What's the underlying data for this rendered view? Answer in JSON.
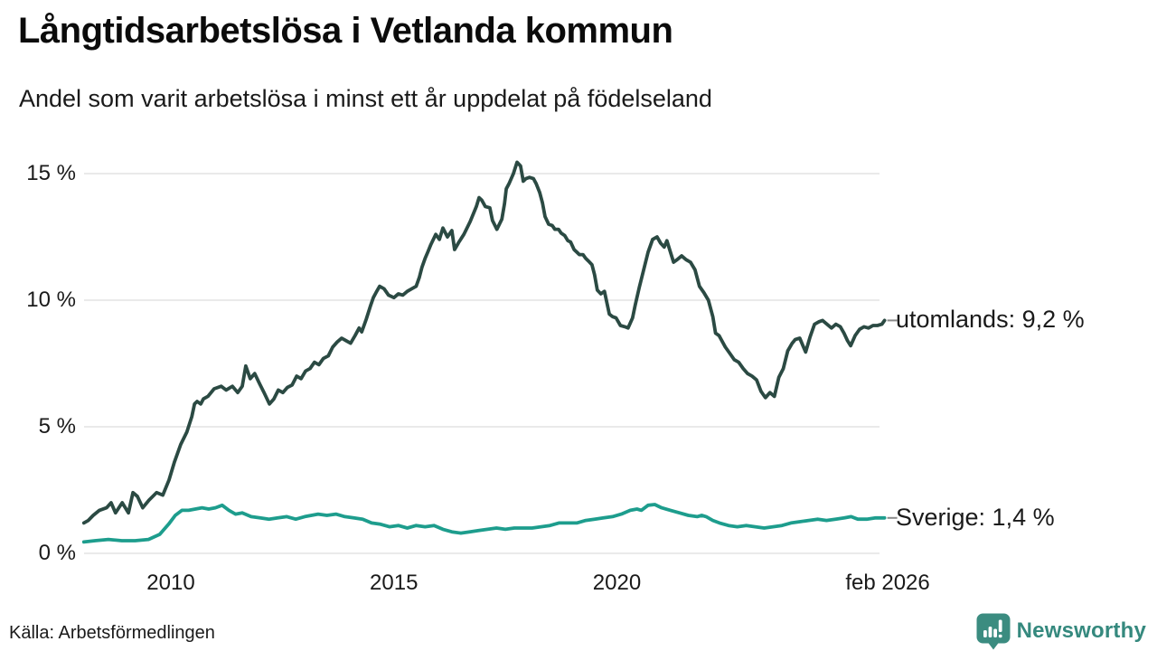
{
  "header": {
    "title": "Långtidsarbetslösa i Vetlanda kommun",
    "subtitle": "Andel som varit arbetslösa i minst ett år uppdelat på födelseland"
  },
  "footer": {
    "source": "Källa: Arbetsförmedlingen",
    "brand": "Newsworthy"
  },
  "colors": {
    "utomlands": "#2b4a43",
    "sverige": "#1d9d8d",
    "grid": "#e3e3e3",
    "text": "#1a1a1a",
    "label_dash": "#8a8a8a",
    "brand_teal": "#3b8c80"
  },
  "chart_data": {
    "type": "line",
    "title": "Långtidsarbetslösa i Vetlanda kommun",
    "subtitle": "Andel som varit arbetslösa i minst ett år uppdelat på födelseland",
    "unit": "%",
    "grid": "horizontal",
    "legend_position": "right-end-labels",
    "x_axis": {
      "range": [
        2008.05,
        2026.0
      ],
      "ticks": [
        {
          "t": 2010,
          "label": "2010"
        },
        {
          "t": 2015,
          "label": "2015"
        },
        {
          "t": 2020,
          "label": "2020"
        },
        {
          "t": 2026.07,
          "label": "feb 2026"
        }
      ]
    },
    "y_axis": {
      "range": [
        0,
        15.5
      ],
      "ticks": [
        {
          "v": 0,
          "label": "0 %"
        },
        {
          "v": 5,
          "label": "5 %"
        },
        {
          "v": 10,
          "label": "10 %"
        },
        {
          "v": 15,
          "label": "15 %"
        }
      ]
    },
    "series": [
      {
        "name": "utomlands",
        "end_label": "utomlands: 9,2 %",
        "end_value": 9.2,
        "color_key": "utomlands",
        "points": [
          [
            2008.05,
            1.2
          ],
          [
            2008.15,
            1.3
          ],
          [
            2008.26,
            1.5
          ],
          [
            2008.4,
            1.7
          ],
          [
            2008.56,
            1.8
          ],
          [
            2008.66,
            2.0
          ],
          [
            2008.76,
            1.6
          ],
          [
            2008.91,
            2.0
          ],
          [
            2009.05,
            1.6
          ],
          [
            2009.15,
            2.4
          ],
          [
            2009.25,
            2.25
          ],
          [
            2009.37,
            1.8
          ],
          [
            2009.51,
            2.1
          ],
          [
            2009.68,
            2.4
          ],
          [
            2009.82,
            2.3
          ],
          [
            2009.96,
            2.9
          ],
          [
            2010.08,
            3.6
          ],
          [
            2010.22,
            4.3
          ],
          [
            2010.36,
            4.8
          ],
          [
            2010.47,
            5.4
          ],
          [
            2010.53,
            5.9
          ],
          [
            2010.59,
            6.0
          ],
          [
            2010.67,
            5.9
          ],
          [
            2010.73,
            6.1
          ],
          [
            2010.83,
            6.2
          ],
          [
            2010.97,
            6.5
          ],
          [
            2011.13,
            6.6
          ],
          [
            2011.24,
            6.45
          ],
          [
            2011.38,
            6.6
          ],
          [
            2011.5,
            6.35
          ],
          [
            2011.6,
            6.6
          ],
          [
            2011.68,
            7.4
          ],
          [
            2011.78,
            6.9
          ],
          [
            2011.88,
            7.1
          ],
          [
            2011.99,
            6.7
          ],
          [
            2012.09,
            6.35
          ],
          [
            2012.21,
            5.9
          ],
          [
            2012.31,
            6.1
          ],
          [
            2012.41,
            6.45
          ],
          [
            2012.51,
            6.35
          ],
          [
            2012.61,
            6.55
          ],
          [
            2012.72,
            6.65
          ],
          [
            2012.82,
            7.0
          ],
          [
            2012.92,
            6.9
          ],
          [
            2013.02,
            7.2
          ],
          [
            2013.12,
            7.3
          ],
          [
            2013.22,
            7.55
          ],
          [
            2013.32,
            7.45
          ],
          [
            2013.42,
            7.7
          ],
          [
            2013.53,
            7.8
          ],
          [
            2013.63,
            8.15
          ],
          [
            2013.73,
            8.35
          ],
          [
            2013.83,
            8.5
          ],
          [
            2013.93,
            8.4
          ],
          [
            2014.03,
            8.3
          ],
          [
            2014.13,
            8.6
          ],
          [
            2014.22,
            8.9
          ],
          [
            2014.28,
            8.75
          ],
          [
            2014.38,
            9.25
          ],
          [
            2014.48,
            9.8
          ],
          [
            2014.54,
            10.1
          ],
          [
            2014.6,
            10.3
          ],
          [
            2014.68,
            10.55
          ],
          [
            2014.78,
            10.45
          ],
          [
            2014.88,
            10.2
          ],
          [
            2015.0,
            10.1
          ],
          [
            2015.1,
            10.25
          ],
          [
            2015.2,
            10.2
          ],
          [
            2015.3,
            10.35
          ],
          [
            2015.4,
            10.45
          ],
          [
            2015.5,
            10.55
          ],
          [
            2015.57,
            10.9
          ],
          [
            2015.63,
            11.3
          ],
          [
            2015.7,
            11.65
          ],
          [
            2015.76,
            11.9
          ],
          [
            2015.83,
            12.2
          ],
          [
            2015.94,
            12.6
          ],
          [
            2016.02,
            12.4
          ],
          [
            2016.1,
            12.85
          ],
          [
            2016.2,
            12.5
          ],
          [
            2016.3,
            12.75
          ],
          [
            2016.36,
            12.0
          ],
          [
            2016.46,
            12.3
          ],
          [
            2016.57,
            12.6
          ],
          [
            2016.71,
            13.1
          ],
          [
            2016.85,
            13.7
          ],
          [
            2016.91,
            14.05
          ],
          [
            2016.97,
            13.95
          ],
          [
            2017.05,
            13.7
          ],
          [
            2017.15,
            13.65
          ],
          [
            2017.21,
            13.15
          ],
          [
            2017.31,
            12.8
          ],
          [
            2017.42,
            13.2
          ],
          [
            2017.48,
            13.8
          ],
          [
            2017.52,
            14.4
          ],
          [
            2017.58,
            14.6
          ],
          [
            2017.68,
            15.0
          ],
          [
            2017.76,
            15.45
          ],
          [
            2017.84,
            15.3
          ],
          [
            2017.9,
            14.7
          ],
          [
            2017.96,
            14.8
          ],
          [
            2018.04,
            14.85
          ],
          [
            2018.13,
            14.8
          ],
          [
            2018.19,
            14.6
          ],
          [
            2018.27,
            14.25
          ],
          [
            2018.33,
            13.85
          ],
          [
            2018.39,
            13.3
          ],
          [
            2018.47,
            13.0
          ],
          [
            2018.55,
            12.95
          ],
          [
            2018.61,
            12.8
          ],
          [
            2018.69,
            12.8
          ],
          [
            2018.75,
            12.65
          ],
          [
            2018.83,
            12.55
          ],
          [
            2018.9,
            12.35
          ],
          [
            2018.96,
            12.3
          ],
          [
            2019.04,
            12.0
          ],
          [
            2019.1,
            11.9
          ],
          [
            2019.16,
            11.8
          ],
          [
            2019.24,
            11.8
          ],
          [
            2019.3,
            11.65
          ],
          [
            2019.36,
            11.55
          ],
          [
            2019.44,
            11.4
          ],
          [
            2019.5,
            11.0
          ],
          [
            2019.56,
            10.4
          ],
          [
            2019.64,
            10.25
          ],
          [
            2019.72,
            10.35
          ],
          [
            2019.83,
            9.45
          ],
          [
            2019.9,
            9.35
          ],
          [
            2019.98,
            9.3
          ],
          [
            2020.08,
            9.0
          ],
          [
            2020.18,
            8.95
          ],
          [
            2020.25,
            8.9
          ],
          [
            2020.35,
            9.3
          ],
          [
            2020.41,
            9.8
          ],
          [
            2020.5,
            10.5
          ],
          [
            2020.6,
            11.2
          ],
          [
            2020.7,
            11.9
          ],
          [
            2020.8,
            12.4
          ],
          [
            2020.9,
            12.5
          ],
          [
            2020.98,
            12.25
          ],
          [
            2021.06,
            12.1
          ],
          [
            2021.12,
            12.35
          ],
          [
            2021.2,
            11.9
          ],
          [
            2021.27,
            11.5
          ],
          [
            2021.35,
            11.6
          ],
          [
            2021.45,
            11.75
          ],
          [
            2021.55,
            11.6
          ],
          [
            2021.65,
            11.5
          ],
          [
            2021.75,
            11.2
          ],
          [
            2021.85,
            10.55
          ],
          [
            2021.95,
            10.3
          ],
          [
            2022.05,
            10.0
          ],
          [
            2022.15,
            9.35
          ],
          [
            2022.21,
            8.7
          ],
          [
            2022.29,
            8.6
          ],
          [
            2022.43,
            8.15
          ],
          [
            2022.53,
            7.9
          ],
          [
            2022.63,
            7.65
          ],
          [
            2022.73,
            7.55
          ],
          [
            2022.83,
            7.3
          ],
          [
            2022.93,
            7.1
          ],
          [
            2023.03,
            7.0
          ],
          [
            2023.13,
            6.85
          ],
          [
            2023.23,
            6.4
          ],
          [
            2023.33,
            6.15
          ],
          [
            2023.43,
            6.35
          ],
          [
            2023.53,
            6.2
          ],
          [
            2023.63,
            6.95
          ],
          [
            2023.73,
            7.3
          ],
          [
            2023.83,
            8.0
          ],
          [
            2023.93,
            8.3
          ],
          [
            2024.0,
            8.45
          ],
          [
            2024.1,
            8.5
          ],
          [
            2024.17,
            8.2
          ],
          [
            2024.23,
            7.95
          ],
          [
            2024.33,
            8.55
          ],
          [
            2024.43,
            9.05
          ],
          [
            2024.53,
            9.15
          ],
          [
            2024.61,
            9.2
          ],
          [
            2024.71,
            9.05
          ],
          [
            2024.81,
            8.9
          ],
          [
            2024.91,
            9.05
          ],
          [
            2025.01,
            8.95
          ],
          [
            2025.09,
            8.7
          ],
          [
            2025.17,
            8.4
          ],
          [
            2025.24,
            8.2
          ],
          [
            2025.34,
            8.6
          ],
          [
            2025.44,
            8.85
          ],
          [
            2025.54,
            8.95
          ],
          [
            2025.64,
            8.9
          ],
          [
            2025.74,
            9.0
          ],
          [
            2025.84,
            9.0
          ],
          [
            2025.94,
            9.05
          ],
          [
            2026.0,
            9.2
          ]
        ]
      },
      {
        "name": "Sverige",
        "end_label": "Sverige: 1,4 %",
        "end_value": 1.4,
        "color_key": "sverige",
        "points": [
          [
            2008.05,
            0.45
          ],
          [
            2008.3,
            0.5
          ],
          [
            2008.6,
            0.55
          ],
          [
            2008.9,
            0.5
          ],
          [
            2009.2,
            0.5
          ],
          [
            2009.5,
            0.55
          ],
          [
            2009.75,
            0.75
          ],
          [
            2009.95,
            1.15
          ],
          [
            2010.1,
            1.5
          ],
          [
            2010.25,
            1.7
          ],
          [
            2010.4,
            1.7
          ],
          [
            2010.55,
            1.75
          ],
          [
            2010.7,
            1.8
          ],
          [
            2010.85,
            1.75
          ],
          [
            2011.0,
            1.8
          ],
          [
            2011.15,
            1.9
          ],
          [
            2011.3,
            1.7
          ],
          [
            2011.45,
            1.55
          ],
          [
            2011.6,
            1.6
          ],
          [
            2011.8,
            1.45
          ],
          [
            2012.0,
            1.4
          ],
          [
            2012.2,
            1.35
          ],
          [
            2012.4,
            1.4
          ],
          [
            2012.6,
            1.45
          ],
          [
            2012.8,
            1.35
          ],
          [
            2013.0,
            1.45
          ],
          [
            2013.15,
            1.5
          ],
          [
            2013.3,
            1.55
          ],
          [
            2013.5,
            1.5
          ],
          [
            2013.7,
            1.55
          ],
          [
            2013.9,
            1.45
          ],
          [
            2014.1,
            1.4
          ],
          [
            2014.3,
            1.35
          ],
          [
            2014.5,
            1.2
          ],
          [
            2014.7,
            1.15
          ],
          [
            2014.9,
            1.05
          ],
          [
            2015.1,
            1.1
          ],
          [
            2015.3,
            1.0
          ],
          [
            2015.5,
            1.1
          ],
          [
            2015.7,
            1.05
          ],
          [
            2015.9,
            1.1
          ],
          [
            2016.1,
            0.95
          ],
          [
            2016.3,
            0.85
          ],
          [
            2016.5,
            0.8
          ],
          [
            2016.7,
            0.85
          ],
          [
            2016.9,
            0.9
          ],
          [
            2017.1,
            0.95
          ],
          [
            2017.3,
            1.0
          ],
          [
            2017.5,
            0.95
          ],
          [
            2017.7,
            1.0
          ],
          [
            2017.9,
            1.0
          ],
          [
            2018.1,
            1.0
          ],
          [
            2018.3,
            1.05
          ],
          [
            2018.5,
            1.1
          ],
          [
            2018.7,
            1.2
          ],
          [
            2018.9,
            1.2
          ],
          [
            2019.1,
            1.2
          ],
          [
            2019.3,
            1.3
          ],
          [
            2019.5,
            1.35
          ],
          [
            2019.7,
            1.4
          ],
          [
            2019.9,
            1.45
          ],
          [
            2020.1,
            1.55
          ],
          [
            2020.3,
            1.7
          ],
          [
            2020.45,
            1.75
          ],
          [
            2020.55,
            1.7
          ],
          [
            2020.7,
            1.9
          ],
          [
            2020.85,
            1.93
          ],
          [
            2021.0,
            1.8
          ],
          [
            2021.2,
            1.7
          ],
          [
            2021.4,
            1.6
          ],
          [
            2021.6,
            1.5
          ],
          [
            2021.8,
            1.45
          ],
          [
            2021.9,
            1.5
          ],
          [
            2022.0,
            1.45
          ],
          [
            2022.15,
            1.3
          ],
          [
            2022.3,
            1.2
          ],
          [
            2022.5,
            1.1
          ],
          [
            2022.7,
            1.05
          ],
          [
            2022.9,
            1.1
          ],
          [
            2023.1,
            1.05
          ],
          [
            2023.3,
            1.0
          ],
          [
            2023.5,
            1.05
          ],
          [
            2023.7,
            1.1
          ],
          [
            2023.9,
            1.2
          ],
          [
            2024.1,
            1.25
          ],
          [
            2024.3,
            1.3
          ],
          [
            2024.5,
            1.35
          ],
          [
            2024.7,
            1.3
          ],
          [
            2024.9,
            1.35
          ],
          [
            2025.1,
            1.4
          ],
          [
            2025.25,
            1.45
          ],
          [
            2025.4,
            1.35
          ],
          [
            2025.6,
            1.35
          ],
          [
            2025.8,
            1.4
          ],
          [
            2026.0,
            1.4
          ]
        ]
      }
    ]
  }
}
